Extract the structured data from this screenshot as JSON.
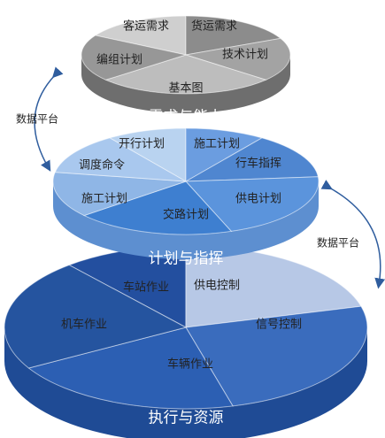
{
  "layers": [
    {
      "title": "需求与能力",
      "segments": [
        "客运需求",
        "货运需求",
        "技术计划",
        "基本图",
        "编组计划"
      ]
    },
    {
      "title": "计划与指挥",
      "segments": [
        "开行计划",
        "施工计划",
        "行车指挥",
        "供电计划",
        "交路计划",
        "施工计划",
        "调度命令"
      ]
    },
    {
      "title": "执行与资源",
      "segments": [
        "车站作业",
        "供电控制",
        "信号控制",
        "车辆作业",
        "机车作业"
      ]
    }
  ],
  "side_labels": [
    "数据平台",
    "数据平台"
  ]
}
